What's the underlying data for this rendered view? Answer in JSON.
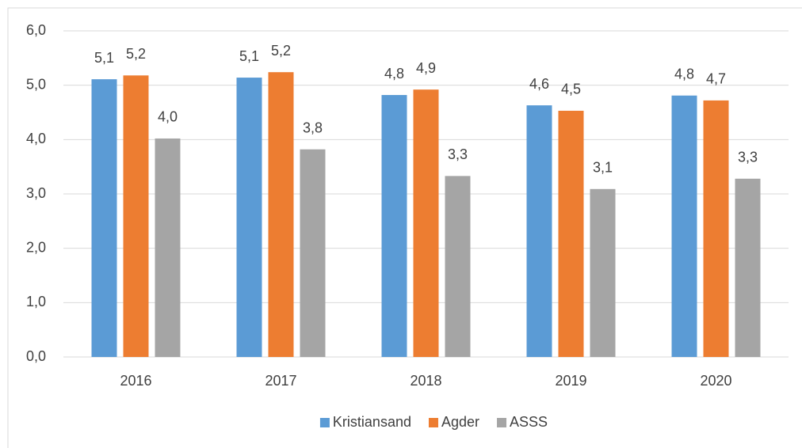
{
  "chart_data": {
    "type": "bar",
    "categories": [
      "2016",
      "2017",
      "2018",
      "2019",
      "2020"
    ],
    "series": [
      {
        "name": "Kristiansand",
        "color": "#5b9bd5",
        "values": [
          5.11,
          5.14,
          4.82,
          4.63,
          4.81
        ],
        "value_labels": [
          "5,1",
          "5,1",
          "4,8",
          "4,6",
          "4,8"
        ]
      },
      {
        "name": "Agder",
        "color": "#ed7d31",
        "values": [
          5.18,
          5.24,
          4.92,
          4.53,
          4.72
        ],
        "value_labels": [
          "5,2",
          "5,2",
          "4,9",
          "4,5",
          "4,7"
        ]
      },
      {
        "name": "ASSS",
        "color": "#a5a5a5",
        "values": [
          4.02,
          3.82,
          3.33,
          3.09,
          3.28
        ],
        "value_labels": [
          "4,0",
          "3,8",
          "3,3",
          "3,1",
          "3,3"
        ]
      }
    ],
    "ylim": [
      0,
      6
    ],
    "yticks": [
      {
        "value": 0,
        "label": "0,0"
      },
      {
        "value": 1,
        "label": "1,0"
      },
      {
        "value": 2,
        "label": "2,0"
      },
      {
        "value": 3,
        "label": "3,0"
      },
      {
        "value": 4,
        "label": "4,0"
      },
      {
        "value": 5,
        "label": "5,0"
      },
      {
        "value": 6,
        "label": "6,0"
      }
    ],
    "grid": true,
    "legend": "bottom"
  }
}
